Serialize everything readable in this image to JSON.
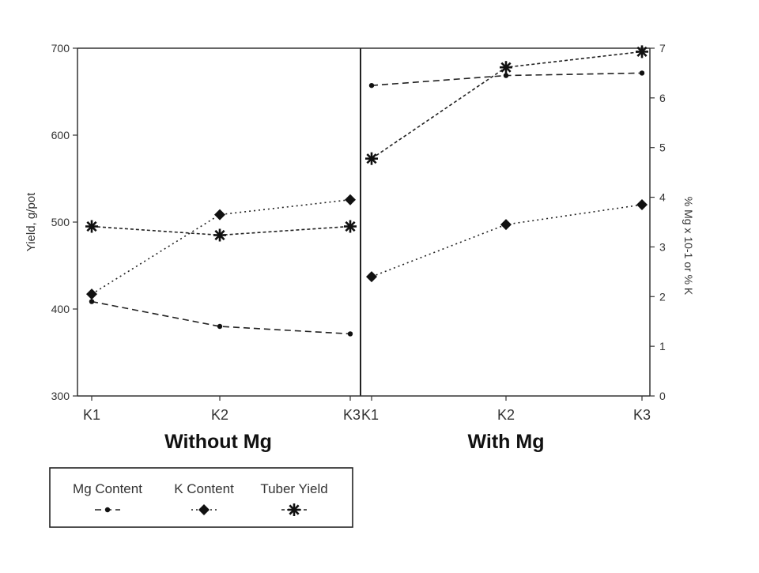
{
  "chart_data": {
    "type": "line",
    "panels": [
      {
        "name": "Without Mg",
        "categories": [
          "K1",
          "K2",
          "K3"
        ]
      },
      {
        "name": "With Mg",
        "categories": [
          "K1",
          "K2",
          "K3"
        ]
      }
    ],
    "y_left": {
      "label": "Yield, g/pot",
      "ticks": [
        300,
        400,
        500,
        600,
        700
      ],
      "range": [
        300,
        700
      ]
    },
    "y_right": {
      "label": "% Mg x 10-1 or % K",
      "ticks": [
        0,
        1,
        2,
        3,
        4,
        5,
        6,
        7
      ],
      "range": [
        0,
        7
      ]
    },
    "series": [
      {
        "name": "Mg Content",
        "axis": "right",
        "marker": "dot",
        "values": {
          "Without Mg": [
            1.9,
            1.4,
            1.25
          ],
          "With Mg": [
            6.25,
            6.45,
            6.5
          ]
        }
      },
      {
        "name": "K Content",
        "axis": "right",
        "marker": "diamond",
        "values": {
          "Without Mg": [
            2.05,
            3.65,
            3.95
          ],
          "With Mg": [
            2.4,
            3.45,
            3.85
          ]
        }
      },
      {
        "name": "Tuber Yield",
        "axis": "left",
        "marker": "star",
        "values": {
          "Without Mg": [
            495,
            485,
            495
          ],
          "With Mg": [
            573,
            678,
            696
          ]
        }
      }
    ],
    "legend_position": "bottom-left",
    "grid": false
  }
}
